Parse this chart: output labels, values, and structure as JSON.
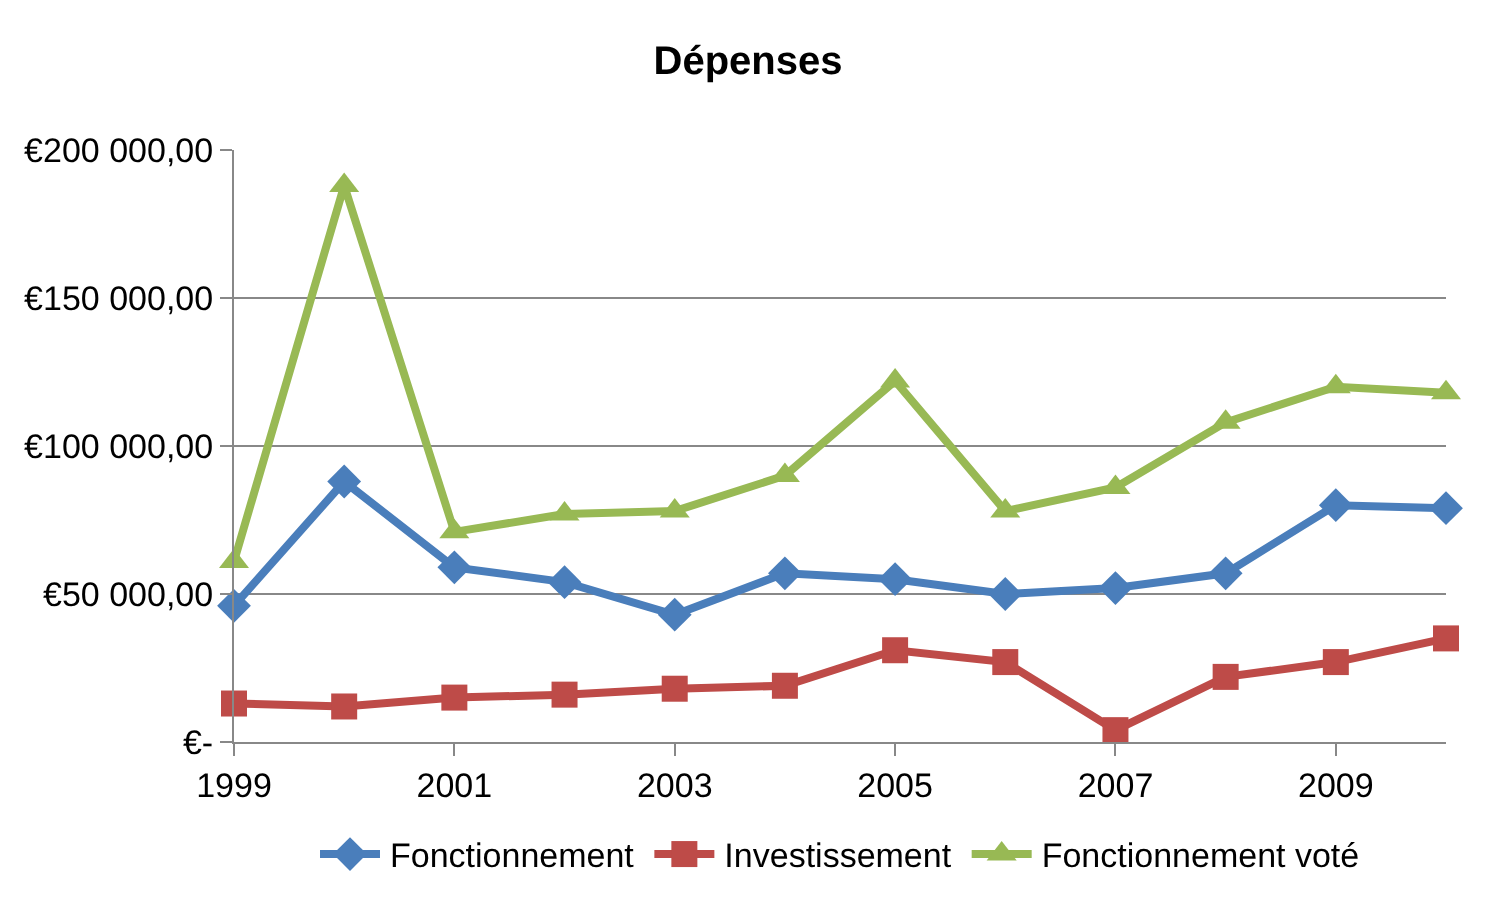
{
  "chart_data": {
    "type": "line",
    "title": "Dépenses",
    "x": [
      1999,
      2000,
      2001,
      2002,
      2003,
      2004,
      2005,
      2006,
      2007,
      2008,
      2009,
      2010
    ],
    "series": [
      {
        "name": "Fonctionnement",
        "color": "#4a7ebb",
        "marker": "diamond",
        "values": [
          46000,
          88000,
          59000,
          54000,
          43000,
          57000,
          55000,
          50000,
          52000,
          57000,
          80000,
          79000
        ]
      },
      {
        "name": "Investissement",
        "color": "#be4b48",
        "marker": "square",
        "values": [
          13000,
          12000,
          15000,
          16000,
          18000,
          19000,
          31000,
          27000,
          4000,
          22000,
          27000,
          35000
        ]
      },
      {
        "name": "Fonctionnement voté",
        "color": "#98b954",
        "marker": "triangle",
        "values": [
          61000,
          188000,
          71000,
          77000,
          78000,
          90000,
          122000,
          78000,
          86000,
          108000,
          120000,
          118000
        ]
      }
    ],
    "xlim": [
      1999,
      2010
    ],
    "xticks": [
      1999,
      2001,
      2003,
      2005,
      2007,
      2009
    ],
    "ylim": [
      0,
      200000
    ],
    "yticks": [
      {
        "value": 0,
        "label": "€-"
      },
      {
        "value": 50000,
        "label": "€50 000,00"
      },
      {
        "value": 100000,
        "label": "€100 000,00"
      },
      {
        "value": 150000,
        "label": "€150 000,00"
      },
      {
        "value": 200000,
        "label": "€200 000,00"
      }
    ],
    "grid": "y",
    "legend": "bottom",
    "line_style": "solid"
  }
}
